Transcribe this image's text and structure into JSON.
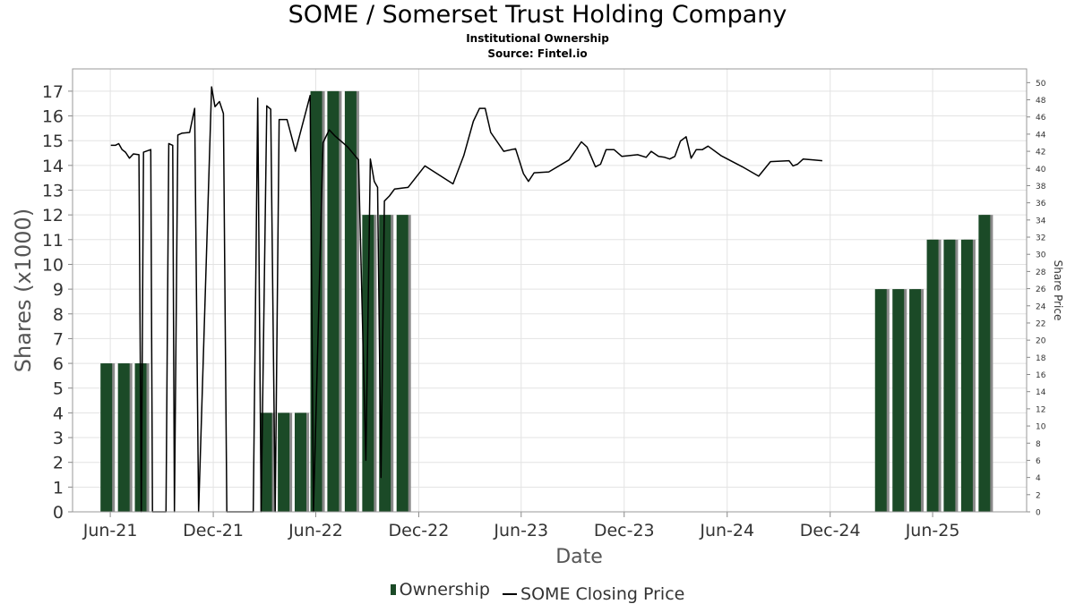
{
  "title": "SOME / Somerset Trust Holding Company",
  "subtitle": "Institutional Ownership",
  "source": "Source: Fintel.io",
  "colors": {
    "bar": "#1b4a27",
    "bar_shadow": "#8a8a8a",
    "line": "#000000",
    "grid": "#e3e3e3"
  },
  "legend": {
    "ownership": "Ownership",
    "price": "SOME Closing Price"
  },
  "chart_data": {
    "type": "bar",
    "xlabel": "Date",
    "ylabel": "Shares (x1000)",
    "y2label": "Share Price",
    "xlim": [
      "2021-03-26",
      "2025-11-15"
    ],
    "ylim": [
      0,
      17.9
    ],
    "y2lim": [
      0,
      51.6
    ],
    "xticks": [
      {
        "date": "2021-06-01",
        "label": "Jun-21"
      },
      {
        "date": "2021-12-01",
        "label": "Dec-21"
      },
      {
        "date": "2022-06-01",
        "label": "Jun-22"
      },
      {
        "date": "2022-12-01",
        "label": "Dec-22"
      },
      {
        "date": "2023-06-01",
        "label": "Jun-23"
      },
      {
        "date": "2023-12-01",
        "label": "Dec-23"
      },
      {
        "date": "2024-06-01",
        "label": "Jun-24"
      },
      {
        "date": "2024-12-01",
        "label": "Dec-24"
      },
      {
        "date": "2025-06-01",
        "label": "Jun-25"
      }
    ],
    "yticks": [
      0,
      1,
      2,
      3,
      4,
      5,
      6,
      7,
      8,
      9,
      10,
      11,
      12,
      13,
      14,
      15,
      16,
      17
    ],
    "y2ticks": [
      0,
      2,
      4,
      6,
      8,
      10,
      12,
      14,
      16,
      18,
      20,
      22,
      24,
      26,
      28,
      30,
      32,
      34,
      36,
      38,
      40,
      42,
      44,
      46,
      48,
      50
    ],
    "grid": true,
    "legend_position": "bottom",
    "series": [
      {
        "name": "Ownership",
        "kind": "bar",
        "points": [
          {
            "date": "2021-05-25",
            "value": 6
          },
          {
            "date": "2021-06-25",
            "value": 6
          },
          {
            "date": "2021-07-25",
            "value": 6
          },
          {
            "date": "2022-03-05",
            "value": 4
          },
          {
            "date": "2022-04-05",
            "value": 4
          },
          {
            "date": "2022-05-05",
            "value": 4
          },
          {
            "date": "2022-06-02",
            "value": 17
          },
          {
            "date": "2022-07-02",
            "value": 17
          },
          {
            "date": "2022-08-02",
            "value": 17
          },
          {
            "date": "2022-09-02",
            "value": 12
          },
          {
            "date": "2022-10-02",
            "value": 12
          },
          {
            "date": "2022-11-02",
            "value": 12
          },
          {
            "date": "2025-03-01",
            "value": 9
          },
          {
            "date": "2025-04-01",
            "value": 9
          },
          {
            "date": "2025-05-01",
            "value": 9
          },
          {
            "date": "2025-06-01",
            "value": 11
          },
          {
            "date": "2025-07-01",
            "value": 11
          },
          {
            "date": "2025-08-01",
            "value": 11
          },
          {
            "date": "2025-09-01",
            "value": 12
          }
        ]
      },
      {
        "name": "SOME Closing Price",
        "kind": "line",
        "points": [
          [
            "2021-06-02",
            42.7
          ],
          [
            "2021-06-10",
            42.7
          ],
          [
            "2021-06-16",
            42.9
          ],
          [
            "2021-06-22",
            42.2
          ],
          [
            "2021-06-28",
            41.9
          ],
          [
            "2021-07-05",
            41.2
          ],
          [
            "2021-07-12",
            41.7
          ],
          [
            "2021-07-22",
            41.6
          ],
          [
            "2021-07-26",
            0
          ],
          [
            "2021-07-30",
            41.9
          ],
          [
            "2021-08-12",
            42.2
          ],
          [
            "2021-08-15",
            0
          ],
          [
            "2021-09-08",
            0
          ],
          [
            "2021-09-13",
            42.9
          ],
          [
            "2021-09-20",
            42.7
          ],
          [
            "2021-09-23",
            0
          ],
          [
            "2021-09-29",
            43.9
          ],
          [
            "2021-10-06",
            44.1
          ],
          [
            "2021-10-20",
            44.2
          ],
          [
            "2021-10-29",
            47.0
          ],
          [
            "2021-11-05",
            0
          ],
          [
            "2021-11-28",
            49.5
          ],
          [
            "2021-12-04",
            47.2
          ],
          [
            "2021-12-12",
            47.8
          ],
          [
            "2021-12-19",
            46.4
          ],
          [
            "2021-12-25",
            0
          ],
          [
            "2022-02-10",
            0
          ],
          [
            "2022-02-18",
            48.2
          ],
          [
            "2022-02-24",
            0
          ],
          [
            "2022-03-06",
            47.3
          ],
          [
            "2022-03-13",
            46.9
          ],
          [
            "2022-03-21",
            0
          ],
          [
            "2022-03-28",
            45.7
          ],
          [
            "2022-04-11",
            45.7
          ],
          [
            "2022-04-26",
            42.0
          ],
          [
            "2022-05-22",
            48.5
          ],
          [
            "2022-05-28",
            0
          ],
          [
            "2022-06-14",
            43.0
          ],
          [
            "2022-06-25",
            44.5
          ],
          [
            "2022-07-05",
            43.8
          ],
          [
            "2022-07-28",
            42.5
          ],
          [
            "2022-08-16",
            41.0
          ],
          [
            "2022-08-29",
            6.0
          ],
          [
            "2022-09-06",
            41.1
          ],
          [
            "2022-09-13",
            38.5
          ],
          [
            "2022-09-19",
            37.8
          ],
          [
            "2022-09-25",
            4.0
          ],
          [
            "2022-10-01",
            36.2
          ],
          [
            "2022-10-10",
            36.8
          ],
          [
            "2022-10-19",
            37.6
          ],
          [
            "2022-11-12",
            37.8
          ],
          [
            "2022-12-12",
            40.3
          ],
          [
            "2023-01-31",
            38.2
          ],
          [
            "2023-02-19",
            41.5
          ],
          [
            "2023-03-08",
            45.5
          ],
          [
            "2023-03-19",
            47.0
          ],
          [
            "2023-03-29",
            47.0
          ],
          [
            "2023-04-08",
            44.2
          ],
          [
            "2023-05-01",
            42.0
          ],
          [
            "2023-05-22",
            42.3
          ],
          [
            "2023-06-05",
            39.4
          ],
          [
            "2023-06-14",
            38.5
          ],
          [
            "2023-06-24",
            39.5
          ],
          [
            "2023-07-20",
            39.6
          ],
          [
            "2023-08-25",
            41.0
          ],
          [
            "2023-09-16",
            43.1
          ],
          [
            "2023-09-26",
            42.5
          ],
          [
            "2023-10-11",
            40.2
          ],
          [
            "2023-10-20",
            40.5
          ],
          [
            "2023-10-30",
            42.2
          ],
          [
            "2023-11-13",
            42.2
          ],
          [
            "2023-11-27",
            41.4
          ],
          [
            "2023-12-25",
            41.6
          ],
          [
            "2024-01-09",
            41.3
          ],
          [
            "2024-01-18",
            42.0
          ],
          [
            "2024-01-31",
            41.4
          ],
          [
            "2024-02-11",
            41.3
          ],
          [
            "2024-02-20",
            41.1
          ],
          [
            "2024-02-29",
            41.4
          ],
          [
            "2024-03-10",
            43.2
          ],
          [
            "2024-03-20",
            43.7
          ],
          [
            "2024-03-29",
            41.2
          ],
          [
            "2024-04-07",
            42.2
          ],
          [
            "2024-04-18",
            42.2
          ],
          [
            "2024-04-28",
            42.6
          ],
          [
            "2024-05-21",
            41.5
          ],
          [
            "2024-06-28",
            40.2
          ],
          [
            "2024-07-27",
            39.1
          ],
          [
            "2024-08-17",
            40.8
          ],
          [
            "2024-09-19",
            40.9
          ],
          [
            "2024-09-26",
            40.3
          ],
          [
            "2024-10-04",
            40.5
          ],
          [
            "2024-10-14",
            41.1
          ],
          [
            "2024-11-02",
            41.0
          ],
          [
            "2024-11-17",
            40.9
          ]
        ]
      }
    ]
  }
}
